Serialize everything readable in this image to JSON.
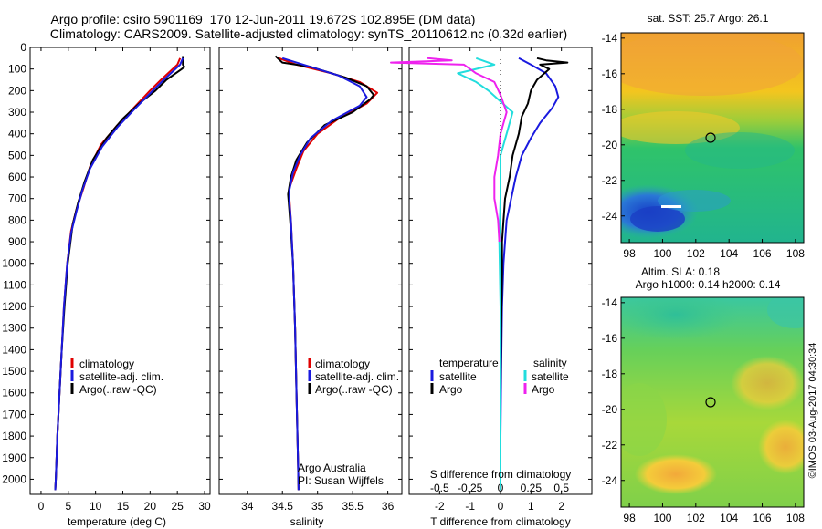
{
  "title_line1": "Argo profile: csiro 5901169_170 12-Jun-2011 19.672S 102.895E (DM data)",
  "title_line2": "Climatology: CARS2009. Satellite-adjusted climatology: synTS_20110612.nc (0.32d earlier)",
  "colors": {
    "climatology": "#e00000",
    "satellite": "#1a1adf",
    "argo": "#000000",
    "s_sat": "#22dddd",
    "s_argo": "#ee22ee"
  },
  "chart_data": [
    {
      "type": "line",
      "id": "temperature",
      "xlabel": "temperature (deg C)",
      "xlim": [
        -2,
        31
      ],
      "xticks": [
        0,
        5,
        10,
        15,
        20,
        25,
        30
      ],
      "ylim": [
        0,
        2070
      ],
      "yticks": [
        0,
        100,
        200,
        300,
        400,
        500,
        600,
        700,
        800,
        900,
        1000,
        1100,
        1200,
        1300,
        1400,
        1500,
        1600,
        1700,
        1800,
        1900,
        2000
      ],
      "legend": [
        "climatology",
        "satellite-adj. clim.",
        "Argo(..raw -QC)"
      ],
      "series": [
        {
          "name": "climatology",
          "points": [
            [
              25.5,
              50
            ],
            [
              25,
              80
            ],
            [
              22,
              150
            ],
            [
              20,
              200
            ],
            [
              17,
              280
            ],
            [
              14,
              360
            ],
            [
              11,
              450
            ],
            [
              9,
              550
            ],
            [
              7.8,
              650
            ],
            [
              6.5,
              750
            ],
            [
              5.5,
              850
            ],
            [
              4.8,
              1000
            ],
            [
              4.2,
              1200
            ],
            [
              3.8,
              1400
            ],
            [
              3.4,
              1600
            ],
            [
              3.0,
              1800
            ],
            [
              2.7,
              2000
            ],
            [
              2.6,
              2050
            ]
          ]
        },
        {
          "name": "satellite-adj. clim.",
          "points": [
            [
              26,
              50
            ],
            [
              25.5,
              80
            ],
            [
              22.5,
              150
            ],
            [
              20.5,
              200
            ],
            [
              17,
              290
            ],
            [
              14,
              370
            ],
            [
              11.2,
              460
            ],
            [
              9,
              560
            ],
            [
              7.6,
              660
            ],
            [
              6.5,
              760
            ],
            [
              5.5,
              860
            ],
            [
              4.8,
              1000
            ],
            [
              4.2,
              1200
            ],
            [
              3.8,
              1400
            ],
            [
              3.4,
              1600
            ],
            [
              3.0,
              1800
            ],
            [
              2.7,
              2000
            ],
            [
              2.6,
              2050
            ]
          ]
        },
        {
          "name": "Argo(..raw -QC)",
          "points": [
            [
              26,
              40
            ],
            [
              26,
              80
            ],
            [
              26.3,
              90
            ],
            [
              25.8,
              100
            ],
            [
              23,
              150
            ],
            [
              21,
              200
            ],
            [
              18,
              260
            ],
            [
              15,
              330
            ],
            [
              12,
              420
            ],
            [
              9.5,
              520
            ],
            [
              8,
              620
            ],
            [
              6.8,
              720
            ],
            [
              5.8,
              820
            ],
            [
              4.9,
              1000
            ],
            [
              4.3,
              1200
            ],
            [
              3.8,
              1400
            ],
            [
              3.4,
              1600
            ],
            [
              3.0,
              1800
            ],
            [
              2.7,
              2000
            ],
            [
              2.6,
              2050
            ]
          ]
        }
      ]
    },
    {
      "type": "line",
      "id": "salinity",
      "xlabel": "salinity",
      "xlim": [
        33.6,
        36.2
      ],
      "xticks": [
        34,
        34.5,
        35,
        35.5,
        36
      ],
      "ylim": [
        0,
        2070
      ],
      "legend": [
        "climatology",
        "satellite-adj. clim.",
        "Argo(..raw -QC)"
      ],
      "annotation": [
        "Argo Australia",
        "PI: Susan Wijffels"
      ],
      "series": [
        {
          "name": "climatology",
          "points": [
            [
              34.45,
              50
            ],
            [
              34.7,
              80
            ],
            [
              35.2,
              120
            ],
            [
              35.6,
              160
            ],
            [
              35.85,
              210
            ],
            [
              35.7,
              260
            ],
            [
              35.3,
              330
            ],
            [
              35.0,
              400
            ],
            [
              34.8,
              480
            ],
            [
              34.7,
              560
            ],
            [
              34.6,
              650
            ],
            [
              34.6,
              700
            ],
            [
              34.62,
              800
            ],
            [
              34.65,
              1000
            ],
            [
              34.68,
              1300
            ],
            [
              34.7,
              1600
            ],
            [
              34.72,
              1900
            ],
            [
              34.73,
              2050
            ]
          ]
        },
        {
          "name": "satellite-adj. clim.",
          "points": [
            [
              34.5,
              50
            ],
            [
              34.8,
              80
            ],
            [
              35.3,
              130
            ],
            [
              35.6,
              180
            ],
            [
              35.7,
              230
            ],
            [
              35.6,
              270
            ],
            [
              35.2,
              340
            ],
            [
              34.9,
              420
            ],
            [
              34.75,
              500
            ],
            [
              34.65,
              580
            ],
            [
              34.6,
              660
            ],
            [
              34.6,
              720
            ],
            [
              34.62,
              800
            ],
            [
              34.65,
              1000
            ],
            [
              34.68,
              1300
            ],
            [
              34.7,
              1600
            ],
            [
              34.72,
              1900
            ],
            [
              34.73,
              2050
            ]
          ]
        },
        {
          "name": "Argo(..raw -QC)",
          "points": [
            [
              34.4,
              40
            ],
            [
              34.5,
              70
            ],
            [
              34.9,
              90
            ],
            [
              35.4,
              140
            ],
            [
              35.7,
              180
            ],
            [
              35.8,
              220
            ],
            [
              35.75,
              240
            ],
            [
              35.5,
              300
            ],
            [
              35.1,
              360
            ],
            [
              34.85,
              440
            ],
            [
              34.7,
              520
            ],
            [
              34.62,
              600
            ],
            [
              34.58,
              680
            ],
            [
              34.6,
              760
            ],
            [
              34.62,
              850
            ],
            [
              34.65,
              1000
            ],
            [
              34.68,
              1300
            ],
            [
              34.7,
              1600
            ],
            [
              34.72,
              1900
            ],
            [
              34.73,
              2050
            ]
          ]
        }
      ]
    },
    {
      "type": "line",
      "id": "differences",
      "xlabel": "T difference from climatology",
      "xlabel_top": "S difference from climatology",
      "xlim_T": [
        -3,
        3
      ],
      "xticks_T": [
        -2,
        -1,
        0,
        1,
        2
      ],
      "xticks_S": [
        -0.5,
        -0.25,
        0,
        0.25,
        0.5
      ],
      "xticklabels_S": [
        "-0.5",
        "-0.25",
        "0",
        "0.25",
        "0.5"
      ],
      "legend_left_title": "temperature",
      "legend_right_title": "salinity",
      "legend_left": [
        "satellite",
        "Argo"
      ],
      "legend_right": [
        "satellite",
        "Argo"
      ],
      "series": [
        {
          "name": "T satellite",
          "points": [
            [
              0.6,
              50
            ],
            [
              1.0,
              80
            ],
            [
              1.5,
              120
            ],
            [
              1.8,
              180
            ],
            [
              1.9,
              230
            ],
            [
              1.7,
              280
            ],
            [
              1.3,
              350
            ],
            [
              1.0,
              420
            ],
            [
              0.7,
              500
            ],
            [
              0.5,
              600
            ],
            [
              0.35,
              700
            ],
            [
              0.2,
              800
            ],
            [
              0.1,
              1000
            ],
            [
              0.05,
              1200
            ],
            [
              0.02,
              1500
            ],
            [
              0,
              1800
            ],
            [
              0,
              2050
            ]
          ]
        },
        {
          "name": "T Argo",
          "points": [
            [
              1.2,
              50
            ],
            [
              1.5,
              60
            ],
            [
              2.2,
              70
            ],
            [
              1.3,
              80
            ],
            [
              1.6,
              100
            ],
            [
              1.2,
              150
            ],
            [
              1.0,
              200
            ],
            [
              0.9,
              260
            ],
            [
              0.7,
              320
            ],
            [
              0.6,
              400
            ],
            [
              0.4,
              500
            ],
            [
              0.3,
              600
            ],
            [
              0.15,
              700
            ],
            [
              0.1,
              800
            ],
            [
              0.05,
              900
            ],
            [
              0.05,
              1050
            ],
            [
              0.02,
              1300
            ],
            [
              0,
              1600
            ],
            [
              0,
              2050
            ]
          ]
        },
        {
          "name": "S satellite",
          "points": [
            [
              -0.2,
              50
            ],
            [
              -0.05,
              80
            ],
            [
              -0.35,
              120
            ],
            [
              -0.2,
              160
            ],
            [
              -0.1,
              200
            ],
            [
              0,
              250
            ],
            [
              0.1,
              300
            ],
            [
              0.05,
              400
            ],
            [
              0.0,
              500
            ],
            [
              0,
              700
            ],
            [
              -0.01,
              900
            ],
            [
              0,
              1200
            ],
            [
              0,
              1500
            ],
            [
              0,
              2050
            ]
          ]
        },
        {
          "name": "S Argo",
          "points": [
            [
              -0.6,
              50
            ],
            [
              -0.4,
              60
            ],
            [
              -0.9,
              70
            ],
            [
              -0.3,
              80
            ],
            [
              -0.2,
              120
            ],
            [
              -0.05,
              160
            ],
            [
              0,
              220
            ],
            [
              0.05,
              300
            ],
            [
              0.0,
              400
            ],
            [
              -0.02,
              500
            ],
            [
              -0.05,
              600
            ],
            [
              -0.05,
              700
            ],
            [
              -0.02,
              800
            ],
            [
              -0.01,
              900
            ]
          ]
        }
      ]
    },
    {
      "type": "heatmap",
      "id": "sst_map",
      "title": "sat. SST: 25.7  Argo: 26.1",
      "xticks": [
        "98",
        "100",
        "102",
        "104",
        "106",
        "108"
      ],
      "yticks": [
        "-14",
        "-16",
        "-18",
        "-20",
        "-22",
        "-24"
      ],
      "xlim": [
        97.5,
        108.5
      ],
      "ylim": [
        -25.5,
        -13.7
      ],
      "marker": [
        102.9,
        -19.7
      ]
    },
    {
      "type": "heatmap",
      "id": "sla_map",
      "title_line1": "Altim. SLA: 0.18",
      "title_line2": "Argo h1000: 0.14  h2000: 0.14",
      "xticks": [
        "98",
        "100",
        "102",
        "104",
        "106",
        "108"
      ],
      "yticks": [
        "-14",
        "-16",
        "-18",
        "-20",
        "-22",
        "-24"
      ],
      "xlim": [
        97.5,
        108.5
      ],
      "ylim": [
        -25.5,
        -13.7
      ],
      "marker": [
        102.9,
        -19.7
      ]
    }
  ],
  "watermark": "©IMOS 03-Aug-2017 04:30:34"
}
